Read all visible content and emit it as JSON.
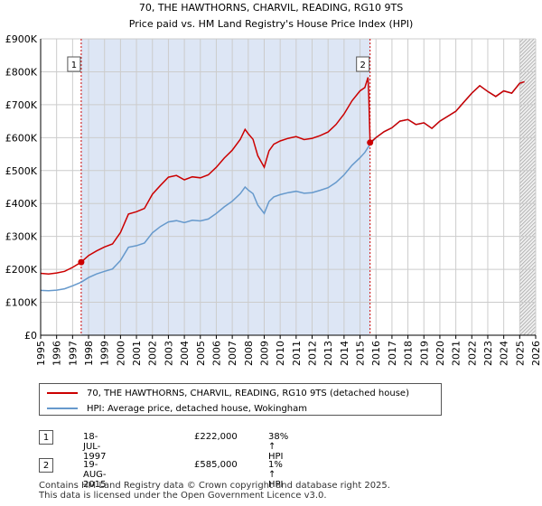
{
  "chart_data": {
    "type": "line",
    "title": "70, THE HAWTHORNS, CHARVIL, READING, RG10 9TS",
    "subtitle": "Price paid vs. HM Land Registry's House Price Index (HPI)",
    "xlabel": "",
    "ylabel": "",
    "xlim": [
      1995.0,
      2026.0
    ],
    "ylim": [
      0,
      900000
    ],
    "y_ticks": [
      0,
      100000,
      200000,
      300000,
      400000,
      500000,
      600000,
      700000,
      800000,
      900000
    ],
    "y_tick_labels": [
      "£0",
      "£100K",
      "£200K",
      "£300K",
      "£400K",
      "£500K",
      "£600K",
      "£700K",
      "£800K",
      "£900K"
    ],
    "x_tick_labels": [
      "1995",
      "1996",
      "1997",
      "1998",
      "1999",
      "2000",
      "2001",
      "2002",
      "2003",
      "2004",
      "2005",
      "2006",
      "2007",
      "2008",
      "2009",
      "2010",
      "2011",
      "2012",
      "2013",
      "2014",
      "2015",
      "2016",
      "2017",
      "2018",
      "2019",
      "2020",
      "2021",
      "2022",
      "2023",
      "2024",
      "2025",
      "2026"
    ],
    "grid": true,
    "sale_region_color": "#dde6f5",
    "forecast_start": 2025.0,
    "series": [
      {
        "name": "70, THE HAWTHORNS, CHARVIL, READING, RG10 9TS (detached house)",
        "color": "#cc0000",
        "x": [
          1995.0,
          1995.5,
          1996.0,
          1996.5,
          1997.0,
          1997.54,
          1998.0,
          1998.5,
          1999.0,
          1999.5,
          2000.0,
          2000.5,
          2001.0,
          2001.5,
          2002.0,
          2002.5,
          2003.0,
          2003.5,
          2004.0,
          2004.5,
          2005.0,
          2005.5,
          2006.0,
          2006.5,
          2007.0,
          2007.5,
          2007.8,
          2008.0,
          2008.3,
          2008.6,
          2009.0,
          2009.3,
          2009.6,
          2010.0,
          2010.5,
          2011.0,
          2011.5,
          2012.0,
          2012.5,
          2013.0,
          2013.5,
          2014.0,
          2014.5,
          2015.0,
          2015.3,
          2015.5,
          2015.55,
          2015.63,
          2016.0,
          2016.5,
          2017.0,
          2017.5,
          2018.0,
          2018.5,
          2019.0,
          2019.5,
          2020.0,
          2020.5,
          2021.0,
          2021.5,
          2022.0,
          2022.5,
          2023.0,
          2023.5,
          2024.0,
          2024.5,
          2025.0,
          2025.3
        ],
        "values": [
          188000,
          186000,
          189000,
          194000,
          206000,
          222000,
          242000,
          256000,
          268000,
          277000,
          312000,
          368000,
          375000,
          385000,
          428000,
          455000,
          480000,
          485000,
          472000,
          481000,
          478000,
          487000,
          510000,
          538000,
          562000,
          595000,
          625000,
          612000,
          595000,
          545000,
          510000,
          560000,
          580000,
          590000,
          598000,
          603000,
          594000,
          598000,
          606000,
          617000,
          640000,
          672000,
          712000,
          742000,
          752000,
          783000,
          720000,
          585000,
          600000,
          618000,
          630000,
          650000,
          655000,
          640000,
          645000,
          628000,
          650000,
          665000,
          680000,
          708000,
          735000,
          758000,
          740000,
          725000,
          742000,
          735000,
          765000,
          770000
        ]
      },
      {
        "name": "HPI: Average price, detached house, Wokingham",
        "color": "#6699cc",
        "x": [
          1995.0,
          1995.5,
          1996.0,
          1996.5,
          1997.0,
          1997.54,
          1998.0,
          1998.5,
          1999.0,
          1999.5,
          2000.0,
          2000.5,
          2001.0,
          2001.5,
          2002.0,
          2002.5,
          2003.0,
          2003.5,
          2004.0,
          2004.5,
          2005.0,
          2005.5,
          2006.0,
          2006.5,
          2007.0,
          2007.5,
          2007.8,
          2008.0,
          2008.3,
          2008.6,
          2009.0,
          2009.3,
          2009.6,
          2010.0,
          2010.5,
          2011.0,
          2011.5,
          2012.0,
          2012.5,
          2013.0,
          2013.5,
          2014.0,
          2014.5,
          2015.0,
          2015.3,
          2015.63,
          2016.0,
          2016.5,
          2017.0,
          2017.5,
          2018.0,
          2018.5,
          2019.0,
          2019.5,
          2020.0,
          2020.5,
          2021.0,
          2021.5,
          2022.0,
          2022.5,
          2023.0,
          2023.5,
          2024.0,
          2024.5,
          2025.0,
          2025.3
        ],
        "values": [
          136000,
          135000,
          137000,
          141000,
          150000,
          161000,
          175000,
          186000,
          194000,
          201000,
          227000,
          267000,
          272000,
          280000,
          311000,
          330000,
          344000,
          348000,
          342000,
          349000,
          347000,
          353000,
          370000,
          390000,
          407000,
          430000,
          450000,
          441000,
          430000,
          395000,
          370000,
          406000,
          420000,
          427000,
          433000,
          437000,
          431000,
          433000,
          440000,
          448000,
          464000,
          487000,
          516000,
          539000,
          555000,
          580000,
          600000,
          618000,
          630000,
          650000,
          655000,
          640000,
          645000,
          628000,
          650000,
          665000,
          680000,
          708000,
          735000,
          758000,
          740000,
          725000,
          742000,
          735000,
          765000,
          770000
        ]
      }
    ],
    "annotations": [
      {
        "label": "1",
        "x": 1997.54,
        "value": 222000
      },
      {
        "label": "2",
        "x": 2015.63,
        "value": 585000
      }
    ]
  },
  "legend": {
    "red_label": "70, THE HAWTHORNS, CHARVIL, READING, RG10 9TS (detached house)",
    "blue_label": "HPI: Average price, detached house, Wokingham"
  },
  "sales": [
    {
      "num": "1",
      "date": "18-JUL-1997",
      "price": "£222,000",
      "hpi": "38% ↑ HPI"
    },
    {
      "num": "2",
      "date": "19-AUG-2015",
      "price": "£585,000",
      "hpi": "1% ↑ HPI"
    }
  ],
  "footer": {
    "line1": "Contains HM Land Registry data © Crown copyright and database right 2025.",
    "line2": "This data is licensed under the Open Government Licence v3.0."
  }
}
